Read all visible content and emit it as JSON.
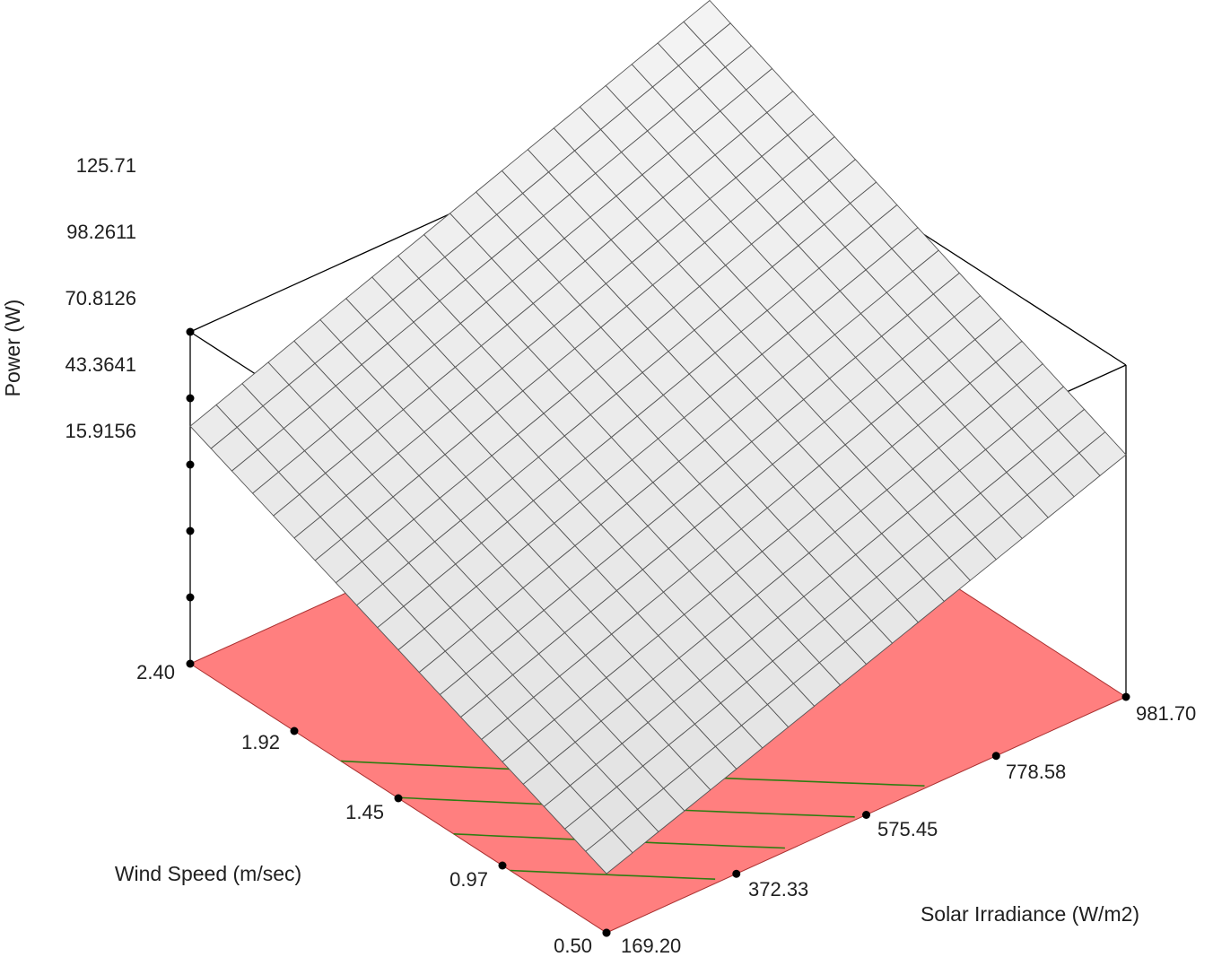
{
  "chart_data": {
    "type": "surface",
    "xlabel": "Solar Irradiance (W/m2)",
    "ylabel": "Wind Speed (m/sec)",
    "zlabel": "Power (W)",
    "x_ticks": [
      "169.20",
      "372.33",
      "575.45",
      "778.58",
      "981.70"
    ],
    "y_ticks": [
      "0.50",
      "0.97",
      "1.45",
      "1.92",
      "2.40"
    ],
    "z_ticks": [
      "15.9156",
      "43.3641",
      "70.8126",
      "98.2611",
      "125.71"
    ],
    "xlim": [
      169.2,
      981.7
    ],
    "ylim": [
      0.5,
      2.4
    ],
    "zlim": [
      -11.533,
      125.71
    ],
    "grid_divisions": 20,
    "surface_corners": [
      {
        "x": 169.2,
        "y": 0.5,
        "z": 12.9
      },
      {
        "x": 981.7,
        "y": 0.5,
        "z": 88.6
      },
      {
        "x": 169.2,
        "y": 2.4,
        "z": 86.7
      },
      {
        "x": 981.7,
        "y": 2.4,
        "z": 165.2
      }
    ],
    "contour_levels": [
      30,
      40,
      50,
      60
    ],
    "colors": {
      "surface_fill": "#e9e9e9",
      "surface_grid": "#555555",
      "floor_fill": "#ff7f7f",
      "floor_edge": "#aa3030",
      "contour": "#2e7d12",
      "box": "#000000"
    }
  }
}
